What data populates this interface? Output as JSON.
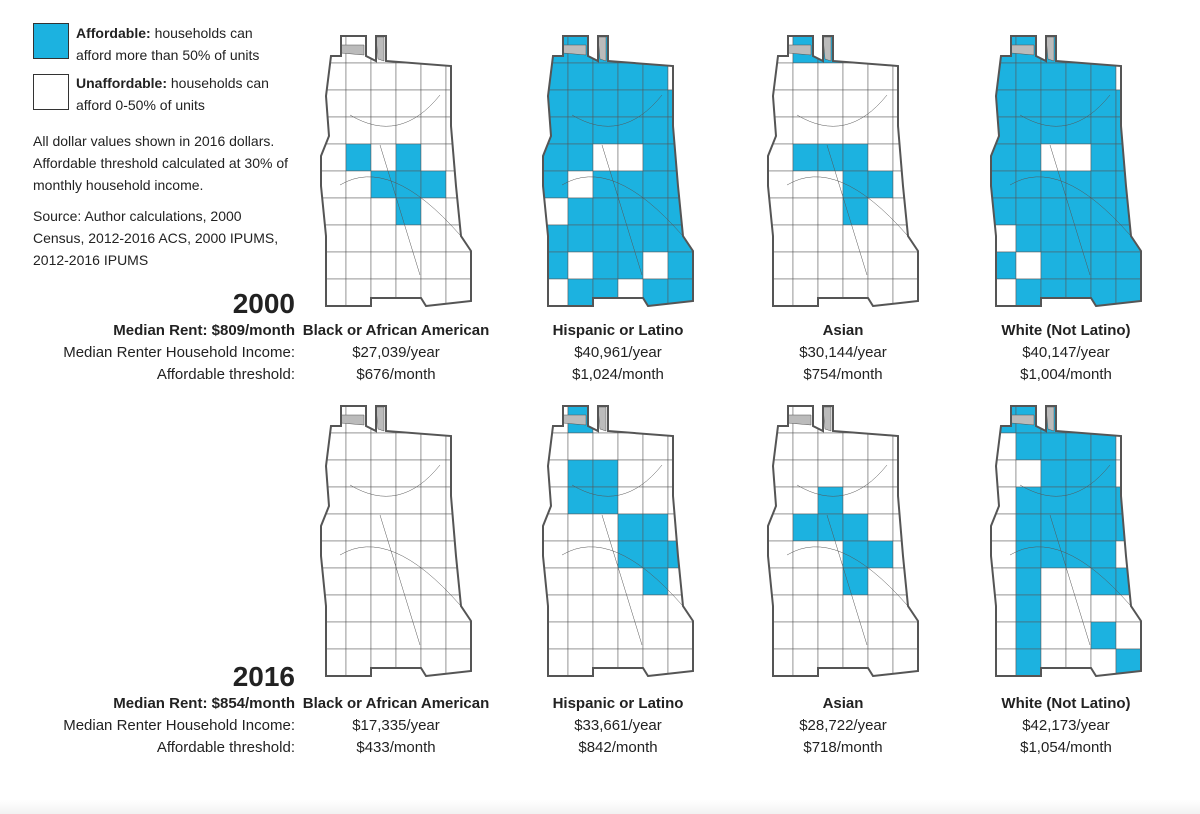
{
  "legend": {
    "items": [
      {
        "term": "Affordable:",
        "text": "households can afford more than 50% of units"
      },
      {
        "term": "Unaffordable:",
        "text": "households can afford 0-50% of units"
      }
    ],
    "notes": [
      "All dollar values shown in 2016 dollars. Affordable threshold calculated at 30% of monthly household income.",
      "Source: Author calculations, 2000 Census, 2012-2016 ACS, 2000 IPUMS, 2012-2016 IPUMS"
    ]
  },
  "periods": [
    {
      "year": "2000",
      "median_rent": "Median Rent: $809/month",
      "income_label": "Median Renter Household Income:",
      "threshold_label": "Affordable threshold:",
      "groups": [
        {
          "name": "Black or African American",
          "income": "$27,039/year",
          "threshold": "$676/month"
        },
        {
          "name": "Hispanic or Latino",
          "income": "$40,961/year",
          "threshold": "$1,024/month"
        },
        {
          "name": "Asian",
          "income": "$30,144/year",
          "threshold": "$754/month"
        },
        {
          "name": "White (Not Latino)",
          "income": "$40,147/year",
          "threshold": "$1,004/month"
        }
      ]
    },
    {
      "year": "2016",
      "median_rent": "Median Rent: $854/month",
      "income_label": "Median Renter Household Income:",
      "threshold_label": "Affordable threshold:",
      "groups": [
        {
          "name": "Black or African American",
          "income": "$17,335/year",
          "threshold": "$433/month"
        },
        {
          "name": "Hispanic or Latino",
          "income": "$33,661/year",
          "threshold": "$842/month"
        },
        {
          "name": "Asian",
          "income": "$28,722/year",
          "threshold": "$718/month"
        },
        {
          "name": "White (Not Latino)",
          "income": "$42,173/year",
          "threshold": "$1,054/month"
        }
      ]
    }
  ]
}
